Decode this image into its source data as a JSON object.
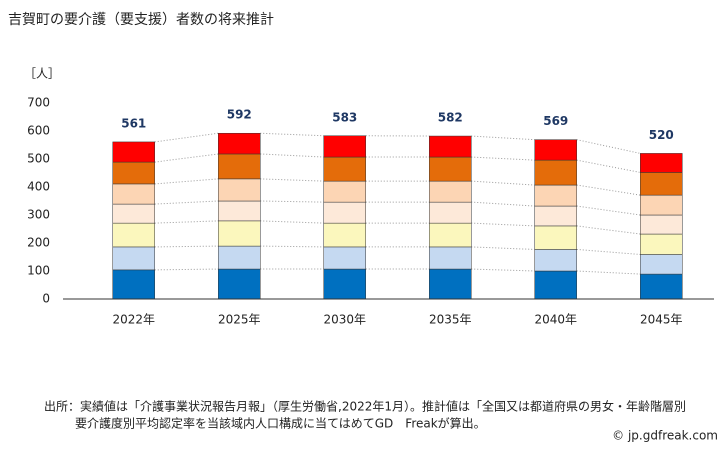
{
  "chart_data": {
    "type": "stacked-bar",
    "title": "吉賀町の要介護（要支援）者数の将来推計",
    "y_label": "［人］",
    "categories": [
      "2022年",
      "2025年",
      "2030年",
      "2035年",
      "2040年",
      "2045年"
    ],
    "series": [
      {
        "color": "#0070c0",
        "values": [
          104,
          107,
          107,
          107,
          100,
          89
        ]
      },
      {
        "color": "#c5d9f1",
        "values": [
          82,
          82,
          79,
          79,
          77,
          70
        ]
      },
      {
        "color": "#fbf7bd",
        "values": [
          85,
          90,
          85,
          85,
          84,
          73
        ]
      },
      {
        "color": "#fde9d9",
        "values": [
          68,
          71,
          75,
          75,
          71,
          68
        ]
      },
      {
        "color": "#fcd5b4",
        "values": [
          72,
          79,
          75,
          75,
          75,
          71
        ]
      },
      {
        "color": "#e46c0a",
        "values": [
          78,
          89,
          86,
          86,
          89,
          81
        ]
      },
      {
        "color": "#ff0000",
        "values": [
          72,
          74,
          76,
          75,
          73,
          68
        ]
      }
    ],
    "totals": [
      561,
      592,
      583,
      582,
      569,
      520
    ],
    "ylim": [
      0,
      700
    ],
    "yticks": [
      0,
      100,
      200,
      300,
      400,
      500,
      600,
      700
    ],
    "source_lines": [
      "出所：実績値は「介護事業状況報告月報」（厚生労働省,2022年1月）。推計値は「全国又は都道府県の男女・年齢階層別",
      "要介護度別平均認定率を当該域内人口構成に当てはめてGD　Freakが算出。"
    ],
    "credit": "© jp.gdfreak.com"
  }
}
